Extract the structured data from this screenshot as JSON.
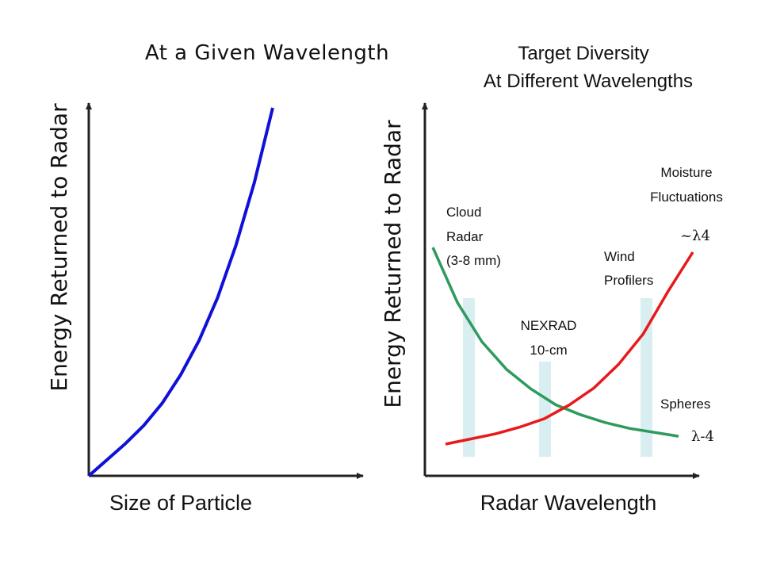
{
  "charts": {
    "left": {
      "title": "At a Given Wavelength",
      "ylabel": "Energy Returned to Radar",
      "xlabel": "Size of Particle"
    },
    "right": {
      "title_line1": "Target Diversity",
      "title_line2": "At Different Wavelengths",
      "ylabel": "Energy Returned to Radar",
      "xlabel": "Radar Wavelength",
      "annotations": {
        "cloud1": "Cloud",
        "cloud2": "Radar",
        "cloud3": "(3-8 mm)",
        "nexrad1": "NEXRAD",
        "nexrad2": "10-cm",
        "wind1": "Wind",
        "wind2": "Profilers",
        "moist1": "Moisture",
        "moist2": "Fluctuations",
        "spheres": "Spheres",
        "lambda_pos": "~λ4",
        "lambda_neg": "λ-4"
      }
    }
  },
  "chart_data": [
    {
      "type": "line",
      "title": "At a Given Wavelength",
      "xlabel": "Size of Particle",
      "ylabel": "Energy Returned to Radar",
      "series": [
        {
          "color": "#1010d8",
          "x": [
            0,
            0.1,
            0.2,
            0.3,
            0.4,
            0.5,
            0.6,
            0.7,
            0.8,
            0.9,
            1.0
          ],
          "y": [
            0,
            0.08,
            0.16,
            0.25,
            0.36,
            0.5,
            0.67,
            0.88,
            1.14,
            1.45,
            1.82
          ]
        }
      ]
    },
    {
      "type": "line",
      "title": "Target Diversity At Different Wavelengths",
      "xlabel": "Radar Wavelength",
      "ylabel": "Energy Returned to Radar",
      "series": [
        {
          "color": "#2e9a5e",
          "x": [
            0,
            0.1,
            0.2,
            0.3,
            0.4,
            0.5,
            0.6,
            0.7,
            0.8,
            0.9,
            1.0
          ],
          "y": [
            1.0,
            0.72,
            0.52,
            0.38,
            0.28,
            0.2,
            0.15,
            0.11,
            0.08,
            0.06,
            0.04
          ]
        },
        {
          "color": "#e8191b",
          "x": [
            0,
            0.1,
            0.2,
            0.3,
            0.4,
            0.5,
            0.6,
            0.7,
            0.8,
            0.9,
            1.0
          ],
          "y": [
            0.0,
            0.03,
            0.06,
            0.1,
            0.15,
            0.23,
            0.33,
            0.47,
            0.65,
            0.9,
            1.13
          ]
        }
      ],
      "bands": [
        {
          "x": 0.147
        },
        {
          "x": 0.451
        },
        {
          "x": 0.846
        }
      ]
    }
  ],
  "colors": {
    "axis": "#222222",
    "blue": "#1010d8",
    "green": "#2e9a5e",
    "red": "#e8191b",
    "band": "#d8eef0"
  }
}
